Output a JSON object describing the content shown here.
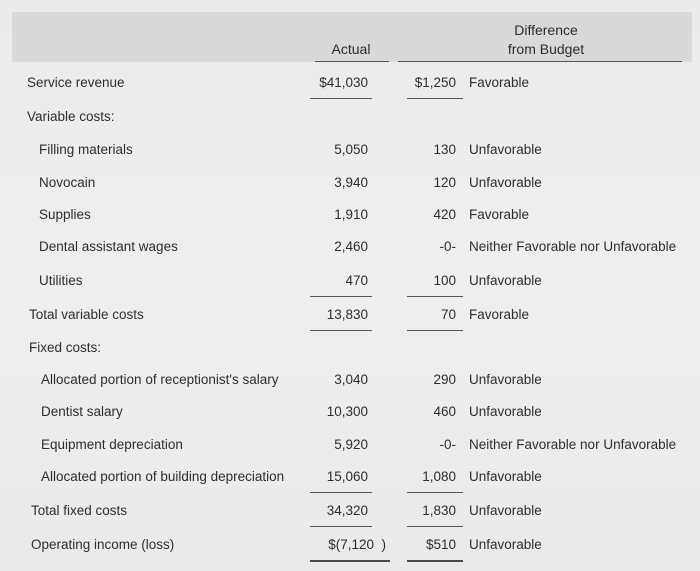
{
  "headers": {
    "actual": "Actual",
    "difference_line1": "Difference",
    "difference_line2": "from Budget"
  },
  "rows": [
    {
      "label": "Service revenue",
      "actual": "$41,030",
      "difference": "$1,250",
      "status": "Favorable"
    },
    {
      "label": "Variable costs:",
      "actual": "",
      "difference": "",
      "status": ""
    },
    {
      "label": "Filling materials",
      "actual": "5,050",
      "difference": "130",
      "status": "Unfavorable"
    },
    {
      "label": "Novocain",
      "actual": "3,940",
      "difference": "120",
      "status": "Unfavorable"
    },
    {
      "label": "Supplies",
      "actual": "1,910",
      "difference": "420",
      "status": "Favorable"
    },
    {
      "label": "Dental assistant wages",
      "actual": "2,460",
      "difference": "-0-",
      "status": "Neither Favorable nor Unfavorable"
    },
    {
      "label": "Utilities",
      "actual": "470",
      "difference": "100",
      "status": "Unfavorable"
    },
    {
      "label": "Total variable costs",
      "actual": "13,830",
      "difference": "70",
      "status": "Favorable"
    },
    {
      "label": "Fixed costs:",
      "actual": "",
      "difference": "",
      "status": ""
    },
    {
      "label": "Allocated portion of receptionist's salary",
      "actual": "3,040",
      "difference": "290",
      "status": "Unfavorable"
    },
    {
      "label": "Dentist salary",
      "actual": "10,300",
      "difference": "460",
      "status": "Unfavorable"
    },
    {
      "label": "Equipment depreciation",
      "actual": "5,920",
      "difference": "-0-",
      "status": "Neither Favorable nor Unfavorable"
    },
    {
      "label": "Allocated portion of building depreciation",
      "actual": "15,060",
      "difference": "1,080",
      "status": "Unfavorable"
    },
    {
      "label": "Total fixed costs",
      "actual": "34,320",
      "difference": "1,830",
      "status": "Unfavorable"
    },
    {
      "label": "Operating income (loss)",
      "actual": "$(7,120  )",
      "difference": "$510",
      "status": "Unfavorable"
    }
  ]
}
